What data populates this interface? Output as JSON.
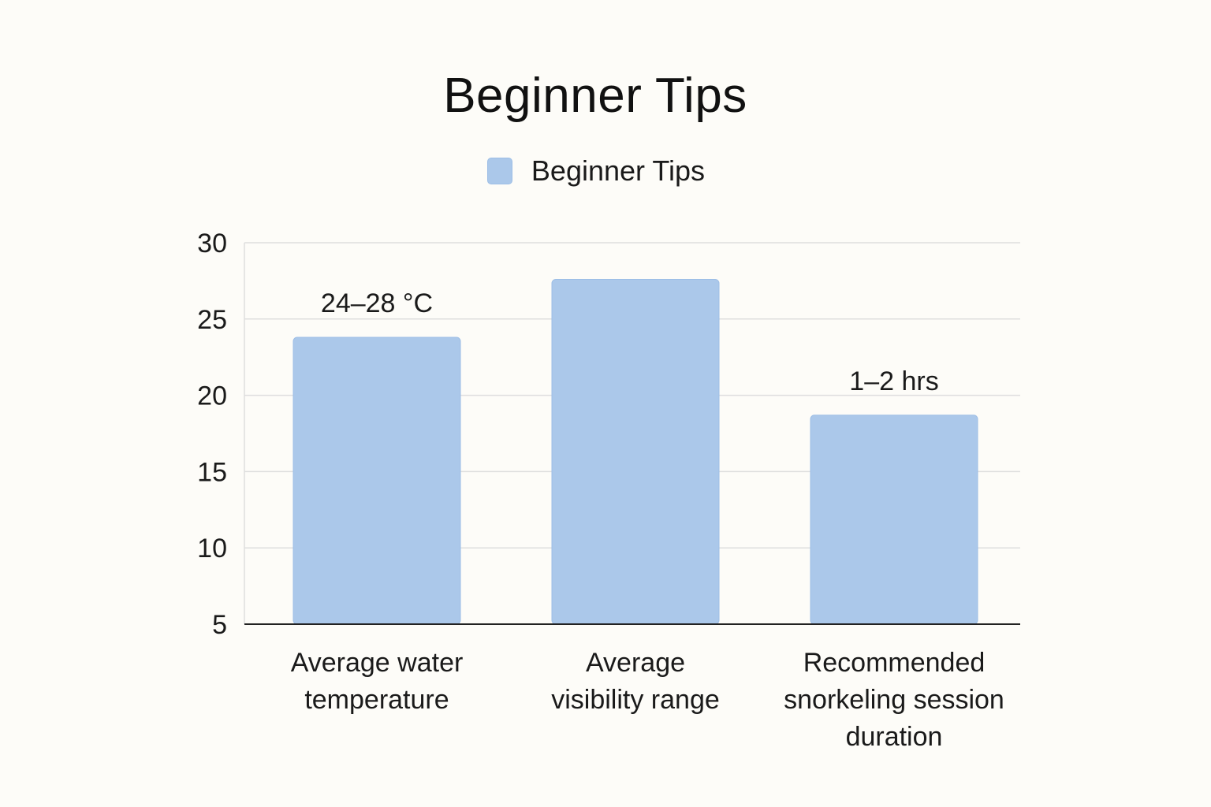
{
  "chart_data": {
    "type": "bar",
    "title": "Beginner Tips",
    "legend": {
      "placement": "top-center",
      "entries": [
        "Beginner Tips"
      ]
    },
    "categories": [
      [
        "Average water",
        "temperature"
      ],
      [
        "Average",
        "visibility range"
      ],
      [
        "Recommended",
        "snorkeling session",
        "duration"
      ]
    ],
    "series": [
      {
        "name": "Beginner Tips",
        "color": "#abc8ea",
        "values": [
          23.8,
          27.6,
          18.7
        ]
      }
    ],
    "data_labels": [
      "24–28 °C",
      "",
      "1–2 hrs"
    ],
    "yticks": [
      5,
      10,
      15,
      20,
      25,
      30
    ],
    "ylim": [
      5,
      30
    ],
    "grid": true,
    "xlabel": "",
    "ylabel": ""
  }
}
